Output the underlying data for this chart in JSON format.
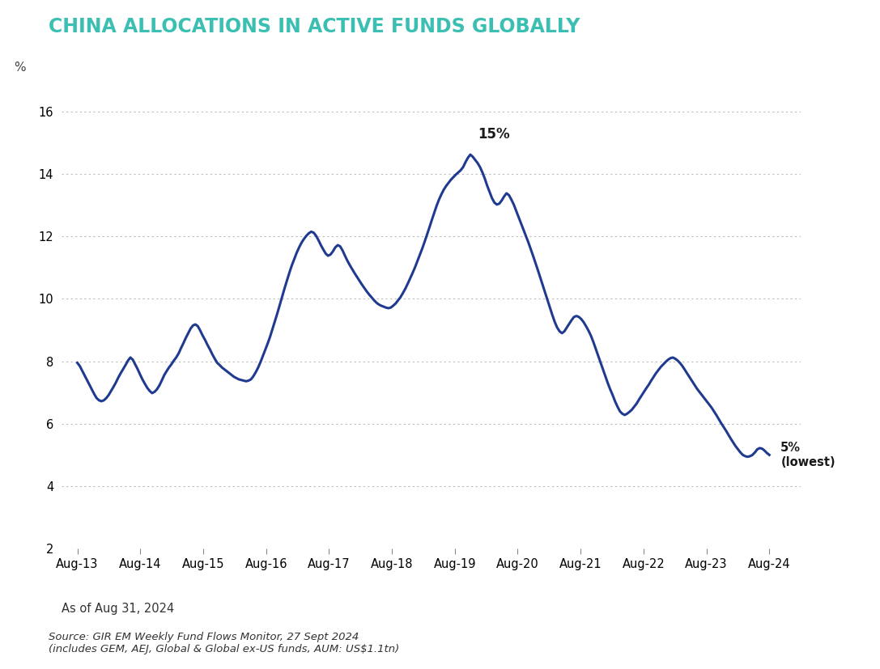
{
  "title": "CHINA ALLOCATIONS IN ACTIVE FUNDS GLOBALLY",
  "title_color": "#3bbfb2",
  "line_color": "#1f3a8f",
  "background_color": "#ffffff",
  "ylabel": "%",
  "ylim": [
    2,
    17
  ],
  "yticks": [
    2,
    4,
    6,
    8,
    10,
    12,
    14,
    16
  ],
  "source_line1": "Source: GIR EM Weekly Fund Flows Monitor, 27 Sept 2024",
  "source_line2": "(includes GEM, AEJ, Global & Global ex-US funds, AUM: US$1.1tn)",
  "annotation_peak": "15%",
  "annotation_low": "5%\n(lowest)",
  "note_text": "As of Aug 31, 2024",
  "xtick_labels": [
    "Aug-13",
    "Aug-14",
    "Aug-15",
    "Aug-16",
    "Aug-17",
    "Aug-18",
    "Aug-19",
    "Aug-20",
    "Aug-21",
    "Aug-22",
    "Aug-23",
    "Aug-24"
  ],
  "y_series": [
    7.95,
    7.85,
    7.7,
    7.55,
    7.4,
    7.25,
    7.1,
    6.95,
    6.82,
    6.75,
    6.72,
    6.75,
    6.82,
    6.92,
    7.05,
    7.18,
    7.32,
    7.48,
    7.62,
    7.75,
    7.88,
    8.02,
    8.12,
    8.05,
    7.9,
    7.75,
    7.58,
    7.42,
    7.28,
    7.15,
    7.05,
    6.98,
    7.02,
    7.1,
    7.22,
    7.38,
    7.55,
    7.68,
    7.8,
    7.9,
    8.02,
    8.12,
    8.25,
    8.42,
    8.58,
    8.75,
    8.9,
    9.05,
    9.15,
    9.18,
    9.12,
    8.98,
    8.82,
    8.68,
    8.52,
    8.38,
    8.22,
    8.08,
    7.95,
    7.88,
    7.8,
    7.74,
    7.68,
    7.62,
    7.56,
    7.5,
    7.46,
    7.42,
    7.4,
    7.38,
    7.36,
    7.38,
    7.42,
    7.52,
    7.65,
    7.8,
    7.98,
    8.18,
    8.38,
    8.58,
    8.8,
    9.05,
    9.3,
    9.55,
    9.82,
    10.08,
    10.35,
    10.6,
    10.85,
    11.08,
    11.28,
    11.48,
    11.65,
    11.8,
    11.92,
    12.02,
    12.1,
    12.15,
    12.12,
    12.02,
    11.88,
    11.72,
    11.58,
    11.45,
    11.38,
    11.42,
    11.52,
    11.65,
    11.72,
    11.68,
    11.55,
    11.38,
    11.22,
    11.08,
    10.95,
    10.82,
    10.7,
    10.58,
    10.46,
    10.35,
    10.24,
    10.14,
    10.05,
    9.96,
    9.88,
    9.82,
    9.78,
    9.75,
    9.72,
    9.7,
    9.72,
    9.78,
    9.85,
    9.95,
    10.05,
    10.18,
    10.32,
    10.48,
    10.65,
    10.82,
    11.0,
    11.2,
    11.4,
    11.6,
    11.82,
    12.05,
    12.28,
    12.52,
    12.75,
    12.98,
    13.18,
    13.35,
    13.5,
    13.62,
    13.72,
    13.82,
    13.9,
    13.98,
    14.05,
    14.12,
    14.22,
    14.38,
    14.52,
    14.62,
    14.55,
    14.45,
    14.35,
    14.22,
    14.05,
    13.85,
    13.62,
    13.42,
    13.22,
    13.08,
    13.02,
    13.05,
    13.15,
    13.28,
    13.38,
    13.32,
    13.18,
    13.02,
    12.82,
    12.62,
    12.42,
    12.22,
    12.02,
    11.82,
    11.6,
    11.38,
    11.15,
    10.92,
    10.68,
    10.44,
    10.2,
    9.96,
    9.72,
    9.48,
    9.26,
    9.08,
    8.96,
    8.9,
    8.96,
    9.08,
    9.2,
    9.32,
    9.42,
    9.45,
    9.42,
    9.35,
    9.25,
    9.12,
    8.98,
    8.82,
    8.62,
    8.4,
    8.18,
    7.96,
    7.74,
    7.52,
    7.3,
    7.1,
    6.92,
    6.72,
    6.55,
    6.4,
    6.32,
    6.28,
    6.32,
    6.38,
    6.45,
    6.55,
    6.65,
    6.78,
    6.9,
    7.02,
    7.14,
    7.25,
    7.38,
    7.5,
    7.62,
    7.72,
    7.82,
    7.9,
    7.98,
    8.05,
    8.1,
    8.12,
    8.08,
    8.02,
    7.94,
    7.84,
    7.72,
    7.6,
    7.48,
    7.36,
    7.24,
    7.12,
    7.02,
    6.92,
    6.82,
    6.72,
    6.62,
    6.52,
    6.4,
    6.28,
    6.15,
    6.02,
    5.9,
    5.78,
    5.65,
    5.52,
    5.4,
    5.28,
    5.18,
    5.08,
    5.0,
    4.96,
    4.94,
    4.96,
    5.0,
    5.08,
    5.18,
    5.22,
    5.2,
    5.14,
    5.06,
    5.0
  ]
}
